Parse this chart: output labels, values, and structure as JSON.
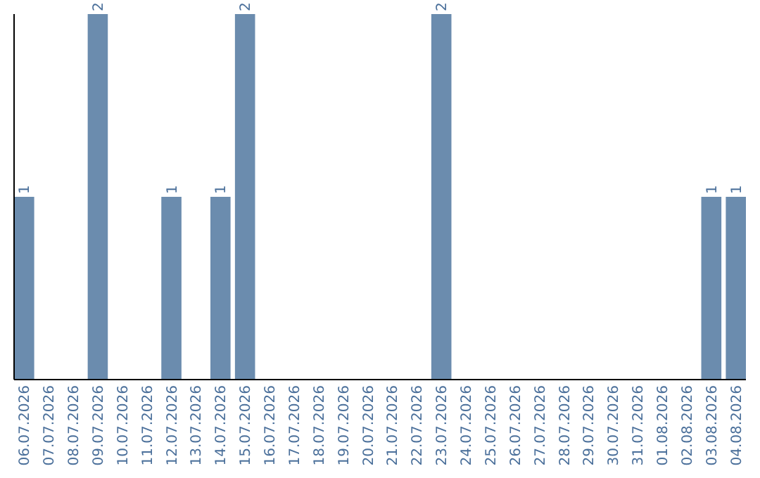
{
  "chart_data": {
    "type": "bar",
    "categories": [
      "06.07.2026",
      "07.07.2026",
      "08.07.2026",
      "09.07.2026",
      "10.07.2026",
      "11.07.2026",
      "12.07.2026",
      "13.07.2026",
      "14.07.2026",
      "15.07.2026",
      "16.07.2026",
      "17.07.2026",
      "18.07.2026",
      "19.07.2026",
      "20.07.2026",
      "21.07.2026",
      "22.07.2026",
      "23.07.2026",
      "24.07.2026",
      "25.07.2026",
      "26.07.2026",
      "27.07.2026",
      "28.07.2026",
      "29.07.2026",
      "30.07.2026",
      "31.07.2026",
      "01.08.2026",
      "02.08.2026",
      "03.08.2026",
      "04.08.2026"
    ],
    "values": [
      1,
      0,
      0,
      2,
      0,
      0,
      1,
      0,
      1,
      2,
      0,
      0,
      0,
      0,
      0,
      0,
      0,
      2,
      0,
      0,
      0,
      0,
      0,
      0,
      0,
      0,
      0,
      0,
      1,
      1
    ],
    "value_labels": [
      "1",
      null,
      null,
      "2",
      null,
      null,
      "1",
      null,
      "1",
      "2",
      null,
      null,
      null,
      null,
      null,
      null,
      null,
      "2",
      null,
      null,
      null,
      null,
      null,
      null,
      null,
      null,
      null,
      null,
      "1",
      "1"
    ],
    "color": "#6b8cae",
    "ylim": [
      0,
      2
    ],
    "tick_labels": "x"
  }
}
